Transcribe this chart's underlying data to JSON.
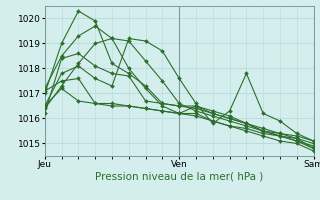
{
  "title": "",
  "xlabel": "Pression niveau de la mer( hPa )",
  "ylabel": "",
  "background_color": "#d4eeed",
  "plot_bg_color": "#d4eeed",
  "grid_color": "#b8d9da",
  "line_color": "#2d6e2d",
  "xlim": [
    0,
    48
  ],
  "ylim": [
    1014.5,
    1020.5
  ],
  "yticks": [
    1015,
    1016,
    1017,
    1018,
    1019,
    1020
  ],
  "xtick_labels": [
    "Jeu",
    "Ven",
    "Sam"
  ],
  "xtick_positions": [
    0,
    24,
    48
  ],
  "lines": [
    {
      "x": [
        0,
        3,
        6,
        9,
        12,
        15,
        18,
        21,
        24,
        27,
        30,
        33,
        36,
        39,
        42,
        45,
        48
      ],
      "y": [
        1017.1,
        1017.5,
        1017.6,
        1016.6,
        1016.5,
        1016.5,
        1016.4,
        1016.3,
        1016.2,
        1016.2,
        1015.9,
        1015.7,
        1015.6,
        1015.4,
        1015.3,
        1015.2,
        1014.8
      ]
    },
    {
      "x": [
        0,
        3,
        6,
        9,
        12,
        15,
        18,
        21,
        24,
        27,
        30,
        33,
        36,
        39,
        42,
        45,
        48
      ],
      "y": [
        1016.2,
        1018.4,
        1018.6,
        1018.1,
        1017.8,
        1017.7,
        1016.7,
        1016.6,
        1016.5,
        1016.5,
        1016.2,
        1016.0,
        1015.8,
        1015.5,
        1015.4,
        1015.3,
        1015.1
      ]
    },
    {
      "x": [
        0,
        3,
        6,
        9,
        12,
        15,
        18,
        21,
        24,
        27,
        30,
        33,
        36,
        39,
        42,
        45,
        48
      ],
      "y": [
        1016.5,
        1017.2,
        1016.7,
        1016.6,
        1016.6,
        1016.5,
        1016.4,
        1016.3,
        1016.2,
        1016.1,
        1015.9,
        1015.7,
        1015.5,
        1015.3,
        1015.1,
        1015.0,
        1014.7
      ]
    },
    {
      "x": [
        0,
        3,
        6,
        9,
        12,
        15,
        18,
        21,
        24,
        27,
        30,
        33,
        36,
        39,
        42,
        45,
        48
      ],
      "y": [
        1017.2,
        1018.5,
        1019.3,
        1019.7,
        1019.2,
        1018.0,
        1017.2,
        1016.5,
        1016.2,
        1016.5,
        1016.3,
        1016.1,
        1015.8,
        1015.5,
        1015.3,
        1015.1,
        1014.8
      ]
    },
    {
      "x": [
        0,
        3,
        6,
        9,
        12,
        15,
        18,
        21,
        24,
        27,
        30,
        33,
        36,
        39,
        42,
        45,
        48
      ],
      "y": [
        1017.0,
        1019.0,
        1020.3,
        1019.9,
        1018.2,
        1017.8,
        1017.3,
        1016.6,
        1016.5,
        1016.4,
        1016.2,
        1016.0,
        1015.8,
        1015.6,
        1015.4,
        1015.2,
        1015.0
      ]
    },
    {
      "x": [
        0,
        3,
        6,
        9,
        12,
        15,
        18,
        21,
        24,
        27,
        30,
        33,
        36,
        39,
        42,
        45,
        48
      ],
      "y": [
        1016.5,
        1017.8,
        1018.1,
        1017.6,
        1017.3,
        1019.2,
        1019.1,
        1018.7,
        1017.6,
        1016.6,
        1015.8,
        1016.3,
        1017.8,
        1016.2,
        1015.9,
        1015.4,
        1015.1
      ]
    },
    {
      "x": [
        0,
        3,
        6,
        9,
        12,
        15,
        18,
        21,
        24,
        27,
        30,
        33,
        36,
        39,
        42,
        45,
        48
      ],
      "y": [
        1016.4,
        1017.3,
        1018.2,
        1019.0,
        1019.2,
        1019.1,
        1018.3,
        1017.5,
        1016.6,
        1016.3,
        1016.1,
        1015.9,
        1015.7,
        1015.5,
        1015.3,
        1015.1,
        1014.9
      ]
    }
  ]
}
